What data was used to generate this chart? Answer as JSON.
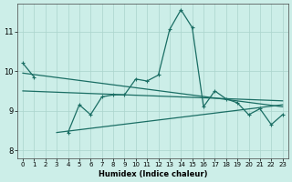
{
  "xlabel": "Humidex (Indice chaleur)",
  "background_color": "#cceee8",
  "grid_color": "#aad4cc",
  "line_color": "#1a6e64",
  "xlim": [
    -0.5,
    23.5
  ],
  "ylim": [
    7.8,
    11.7
  ],
  "xticks": [
    0,
    1,
    2,
    3,
    4,
    5,
    6,
    7,
    8,
    9,
    10,
    11,
    12,
    13,
    14,
    15,
    16,
    17,
    18,
    19,
    20,
    21,
    22,
    23
  ],
  "yticks": [
    8,
    9,
    10,
    11
  ],
  "main_x": [
    0,
    1,
    4,
    5,
    6,
    7,
    8,
    9,
    10,
    11,
    12,
    13,
    14,
    15,
    16,
    17,
    18,
    19,
    20,
    21,
    22,
    23
  ],
  "main_y": [
    10.2,
    9.85,
    8.45,
    9.15,
    8.9,
    9.35,
    9.4,
    9.4,
    9.8,
    9.75,
    9.9,
    11.05,
    11.55,
    11.1,
    9.1,
    9.5,
    9.3,
    9.2,
    8.9,
    9.05,
    8.65,
    8.9
  ],
  "trend1_x": [
    0,
    23
  ],
  "trend1_y": [
    9.95,
    9.1
  ],
  "trend2_x": [
    0,
    23
  ],
  "trend2_y": [
    9.5,
    9.25
  ],
  "trend3_x": [
    3,
    23
  ],
  "trend3_y": [
    8.45,
    9.15
  ]
}
